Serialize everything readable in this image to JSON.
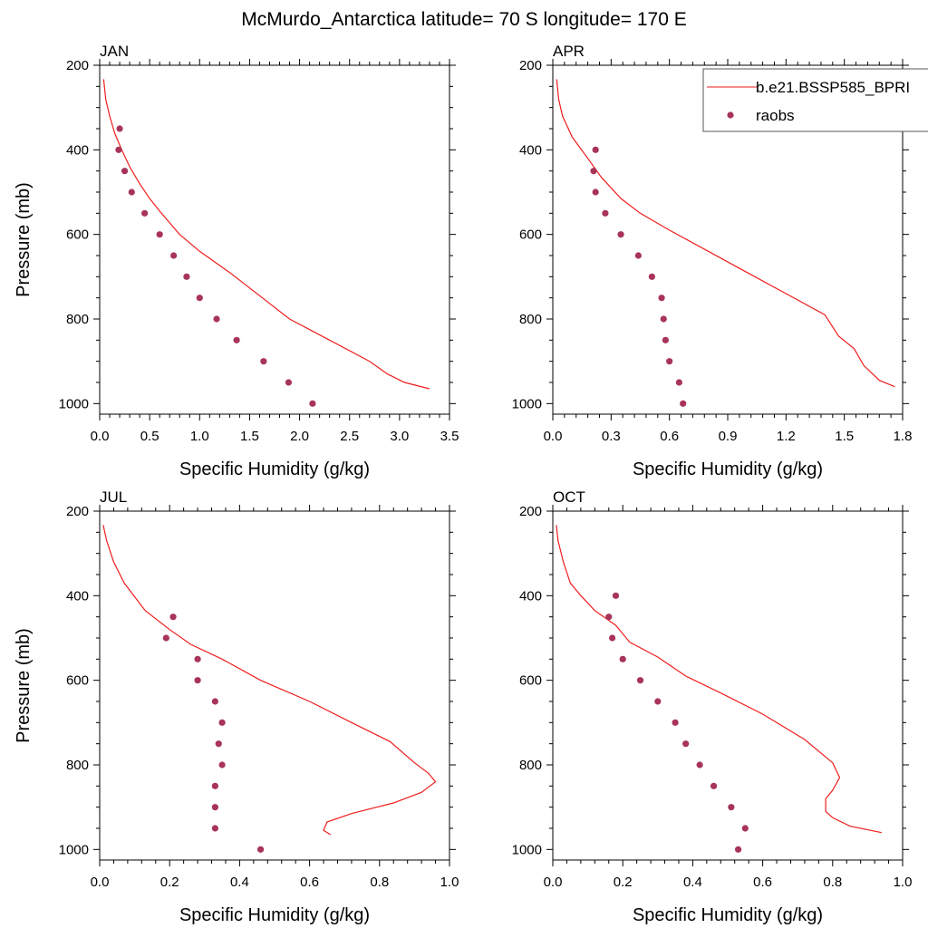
{
  "figure": {
    "title": "McMurdo_Antarctica  latitude= 70 S longitude= 170 E"
  },
  "legend": {
    "model_label": "b.e21.BSSP585_BPRI",
    "obs_label": "raobs",
    "model_color": "#ee1d1d",
    "obs_color": "#a8345a"
  },
  "chart_data": [
    {
      "type": "line",
      "panel_title": "JAN",
      "xlabel": "Specific Humidity (g/kg)",
      "ylabel": "Pressure (mb)",
      "xlim": [
        0,
        3.5
      ],
      "ylim": [
        1025,
        200
      ],
      "y_inverted": true,
      "xticks": [
        0.0,
        0.5,
        1.0,
        1.5,
        2.0,
        2.5,
        3.0,
        3.5
      ],
      "xtick_labels": [
        "0.0",
        "0.5",
        "1.0",
        "1.5",
        "2.0",
        "2.5",
        "3.0",
        "3.5"
      ],
      "yticks": [
        200,
        400,
        600,
        800,
        1000
      ],
      "ytick_labels": [
        "200",
        "400",
        "600",
        "800",
        "1000"
      ],
      "series": [
        {
          "kind": "line",
          "x": [
            0.04,
            0.06,
            0.1,
            0.15,
            0.22,
            0.3,
            0.4,
            0.5,
            0.6,
            0.8,
            1.0,
            1.3,
            1.6,
            1.9,
            2.3,
            2.7,
            2.88,
            3.05,
            3.3
          ],
          "y": [
            233,
            280,
            320,
            360,
            400,
            440,
            480,
            515,
            545,
            600,
            640,
            690,
            745,
            800,
            850,
            900,
            930,
            950,
            965
          ]
        },
        {
          "kind": "scatter",
          "x": [
            0.2,
            0.19,
            0.25,
            0.32,
            0.45,
            0.6,
            0.74,
            0.87,
            1.0,
            1.17,
            1.37,
            1.64,
            1.89,
            2.13
          ],
          "y": [
            350,
            400,
            450,
            500,
            550,
            600,
            650,
            700,
            750,
            800,
            850,
            900,
            950,
            1000
          ]
        }
      ]
    },
    {
      "type": "line",
      "panel_title": "APR",
      "xlabel": "Specific Humidity (g/kg)",
      "ylabel": "",
      "xlim": [
        0,
        1.8
      ],
      "ylim": [
        1025,
        200
      ],
      "y_inverted": true,
      "xticks": [
        0.0,
        0.3,
        0.6,
        0.9,
        1.2,
        1.5,
        1.8
      ],
      "xtick_labels": [
        "0.0",
        "0.3",
        "0.6",
        "0.9",
        "1.2",
        "1.5",
        "1.8"
      ],
      "yticks": [
        200,
        400,
        600,
        800,
        1000
      ],
      "ytick_labels": [
        "200",
        "400",
        "600",
        "800",
        "1000"
      ],
      "series": [
        {
          "kind": "line",
          "x": [
            0.02,
            0.03,
            0.05,
            0.1,
            0.18,
            0.25,
            0.35,
            0.45,
            0.6,
            0.8,
            1.0,
            1.2,
            1.4,
            1.47,
            1.55,
            1.6,
            1.68,
            1.76
          ],
          "y": [
            233,
            280,
            320,
            370,
            420,
            465,
            515,
            550,
            590,
            640,
            690,
            740,
            790,
            840,
            870,
            910,
            945,
            960
          ]
        },
        {
          "kind": "scatter",
          "x": [
            0.22,
            0.21,
            0.22,
            0.27,
            0.35,
            0.44,
            0.51,
            0.56,
            0.57,
            0.58,
            0.6,
            0.65,
            0.67
          ],
          "y": [
            400,
            450,
            500,
            550,
            600,
            650,
            700,
            750,
            800,
            850,
            900,
            950,
            1000
          ]
        }
      ]
    },
    {
      "type": "line",
      "panel_title": "JUL",
      "xlabel": "Specific Humidity (g/kg)",
      "ylabel": "Pressure (mb)",
      "xlim": [
        0,
        1.0
      ],
      "ylim": [
        1025,
        200
      ],
      "y_inverted": true,
      "xticks": [
        0.0,
        0.2,
        0.4,
        0.6,
        0.8,
        1.0
      ],
      "xtick_labels": [
        "0.0",
        "0.2",
        "0.4",
        "0.6",
        "0.8",
        "1.0"
      ],
      "yticks": [
        200,
        400,
        600,
        800,
        1000
      ],
      "ytick_labels": [
        "200",
        "400",
        "600",
        "800",
        "1000"
      ],
      "series": [
        {
          "kind": "line",
          "x": [
            0.01,
            0.02,
            0.04,
            0.07,
            0.13,
            0.2,
            0.26,
            0.35,
            0.46,
            0.6,
            0.72,
            0.83,
            0.9,
            0.94,
            0.96,
            0.92,
            0.84,
            0.72,
            0.65,
            0.64,
            0.66
          ],
          "y": [
            233,
            270,
            320,
            370,
            435,
            480,
            515,
            550,
            600,
            650,
            700,
            745,
            795,
            820,
            840,
            865,
            890,
            915,
            935,
            955,
            965
          ]
        },
        {
          "kind": "scatter",
          "x": [
            0.21,
            0.19,
            0.28,
            0.28,
            0.33,
            0.35,
            0.34,
            0.35,
            0.33,
            0.33,
            0.33,
            0.46
          ],
          "y": [
            450,
            500,
            550,
            600,
            650,
            700,
            750,
            800,
            850,
            900,
            950,
            1000
          ]
        }
      ]
    },
    {
      "type": "line",
      "panel_title": "OCT",
      "xlabel": "Specific Humidity (g/kg)",
      "ylabel": "",
      "xlim": [
        0,
        1.0
      ],
      "ylim": [
        1025,
        200
      ],
      "y_inverted": true,
      "xticks": [
        0.0,
        0.2,
        0.4,
        0.6,
        0.8,
        1.0
      ],
      "xtick_labels": [
        "0.0",
        "0.2",
        "0.4",
        "0.6",
        "0.8",
        "1.0"
      ],
      "yticks": [
        200,
        400,
        600,
        800,
        1000
      ],
      "ytick_labels": [
        "200",
        "400",
        "600",
        "800",
        "1000"
      ],
      "series": [
        {
          "kind": "line",
          "x": [
            0.01,
            0.015,
            0.03,
            0.05,
            0.08,
            0.12,
            0.18,
            0.22,
            0.3,
            0.38,
            0.48,
            0.6,
            0.72,
            0.8,
            0.82,
            0.8,
            0.78,
            0.78,
            0.8,
            0.85,
            0.94
          ],
          "y": [
            233,
            270,
            320,
            370,
            400,
            435,
            470,
            510,
            545,
            590,
            630,
            680,
            740,
            795,
            830,
            860,
            880,
            910,
            925,
            945,
            960
          ]
        },
        {
          "kind": "scatter",
          "x": [
            0.18,
            0.16,
            0.17,
            0.2,
            0.25,
            0.3,
            0.35,
            0.38,
            0.42,
            0.46,
            0.51,
            0.55,
            0.53
          ],
          "y": [
            400,
            450,
            500,
            550,
            600,
            650,
            700,
            750,
            800,
            850,
            900,
            950,
            1000
          ]
        }
      ]
    }
  ]
}
